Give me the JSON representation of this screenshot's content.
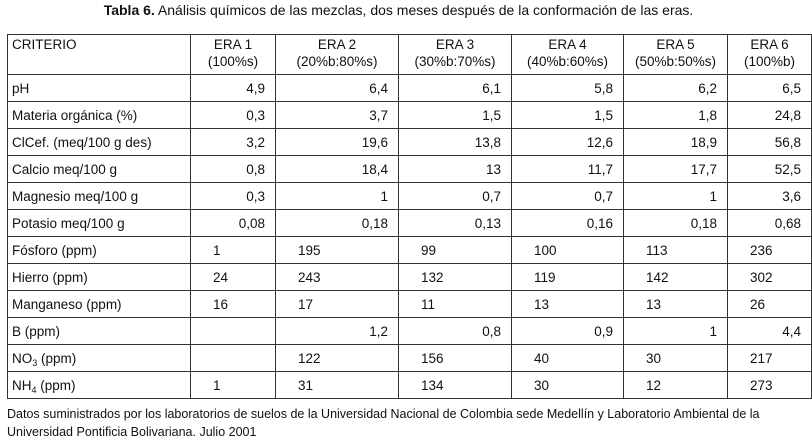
{
  "caption": {
    "label": "Tabla 6.",
    "text": "Análisis químicos de las mezclas, dos meses después de la conformación de las eras."
  },
  "table": {
    "criterio_header": "CRITERIO",
    "columns": [
      {
        "name": "ERA 1",
        "ratio": "(100%s)"
      },
      {
        "name": "ERA 2",
        "ratio": "(20%b:80%s)"
      },
      {
        "name": "ERA 3",
        "ratio": "(30%b:70%s)"
      },
      {
        "name": "ERA 4",
        "ratio": "(40%b:60%s)"
      },
      {
        "name": "ERA 5",
        "ratio": "(50%b:50%s)"
      },
      {
        "name": "ERA 6",
        "ratio": "(100%b)"
      }
    ],
    "rows": [
      {
        "criterio": "pH",
        "values": [
          "4,9",
          "6,4",
          "6,1",
          "5,8",
          "6,2",
          "6,5"
        ]
      },
      {
        "criterio": "Materia orgánica (%)",
        "values": [
          "0,3",
          "3,7",
          "1,5",
          "1,5",
          "1,8",
          "24,8"
        ]
      },
      {
        "criterio": "ClCef. (meq/100 g des)",
        "values": [
          "3,2",
          "19,6",
          "13,8",
          "12,6",
          "18,9",
          "56,8"
        ]
      },
      {
        "criterio": "Calcio meq/100 g",
        "values": [
          "0,8",
          "18,4",
          "13",
          "11,7",
          "17,7",
          "52,5"
        ]
      },
      {
        "criterio": "Magnesio meq/100 g",
        "values": [
          "0,3",
          "1",
          "0,7",
          "0,7",
          "1",
          "3,6"
        ]
      },
      {
        "criterio": "Potasio meq/100 g",
        "values": [
          "0,08",
          "0,18",
          "0,13",
          "0,16",
          "0,18",
          "0,68"
        ]
      },
      {
        "criterio": "Fósforo (ppm)",
        "values": [
          "1",
          "195",
          "99",
          "100",
          "113",
          "236"
        ]
      },
      {
        "criterio": "Hierro (ppm)",
        "values": [
          "24",
          "243",
          "132",
          "119",
          "142",
          "302"
        ]
      },
      {
        "criterio": "Manganeso (ppm)",
        "values": [
          "16",
          "17",
          "11",
          "13",
          "13",
          "26"
        ]
      },
      {
        "criterio": "B (ppm)",
        "values": [
          "",
          "1,2",
          "0,8",
          "0,9",
          "1",
          "4,4"
        ]
      },
      {
        "criterio_base": "NO",
        "criterio_sub": "3",
        "criterio_unit": " (ppm)",
        "values": [
          "",
          "122",
          "156",
          "40",
          "30",
          "217"
        ]
      },
      {
        "criterio_base": "NH",
        "criterio_sub": "4",
        "criterio_unit": " (ppm)",
        "values": [
          "1",
          "31",
          "134",
          "30",
          "12",
          "273"
        ]
      }
    ]
  },
  "source_note": "Datos suministrados por los laboratorios de suelos de la Universidad Nacional de Colombia sede Medellín y Laboratorio Ambiental de la Universidad Pontificia Bolivariana. Julio 2001"
}
